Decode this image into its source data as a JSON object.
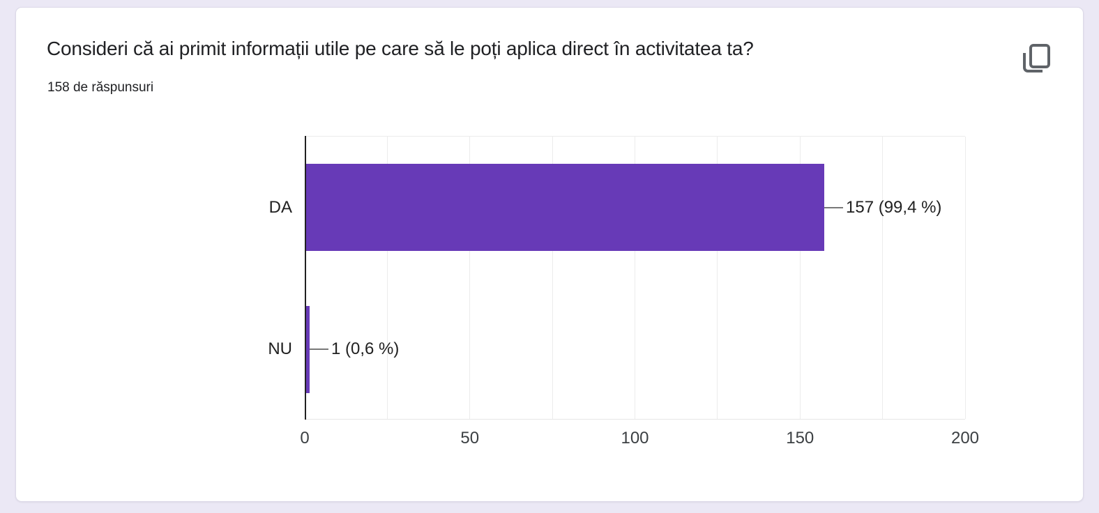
{
  "card": {
    "title": "Consideri că ai primit informații utile pe care să le poți aplica direct în activitatea ta?",
    "responses_label": "158 de răspunsuri",
    "copy_button_icon": "copy-icon"
  },
  "colors": {
    "page_background": "#ebe8f5",
    "card_background": "#ffffff",
    "bar": "#673ab7",
    "axis": "#212121",
    "gridline": "#ececec",
    "icon": "#5f6368",
    "text": "#202124"
  },
  "chart_data": {
    "type": "bar",
    "orientation": "horizontal",
    "title": "Consideri că ai primit informații utile pe care să le poți aplica direct în activitatea ta?",
    "subtitle": "158 de răspunsuri",
    "categories": [
      "DA",
      "NU"
    ],
    "values": [
      157,
      1
    ],
    "percentages": [
      99.4,
      0.6
    ],
    "value_labels": [
      "157 (99,4 %)",
      "1 (0,6 %)"
    ],
    "total_responses": 158,
    "xlim": [
      0,
      200
    ],
    "xticks": [
      0,
      50,
      100,
      150,
      200
    ],
    "gridline_step": 25,
    "bar_color": "#673ab7",
    "grid": true,
    "legend": false
  }
}
